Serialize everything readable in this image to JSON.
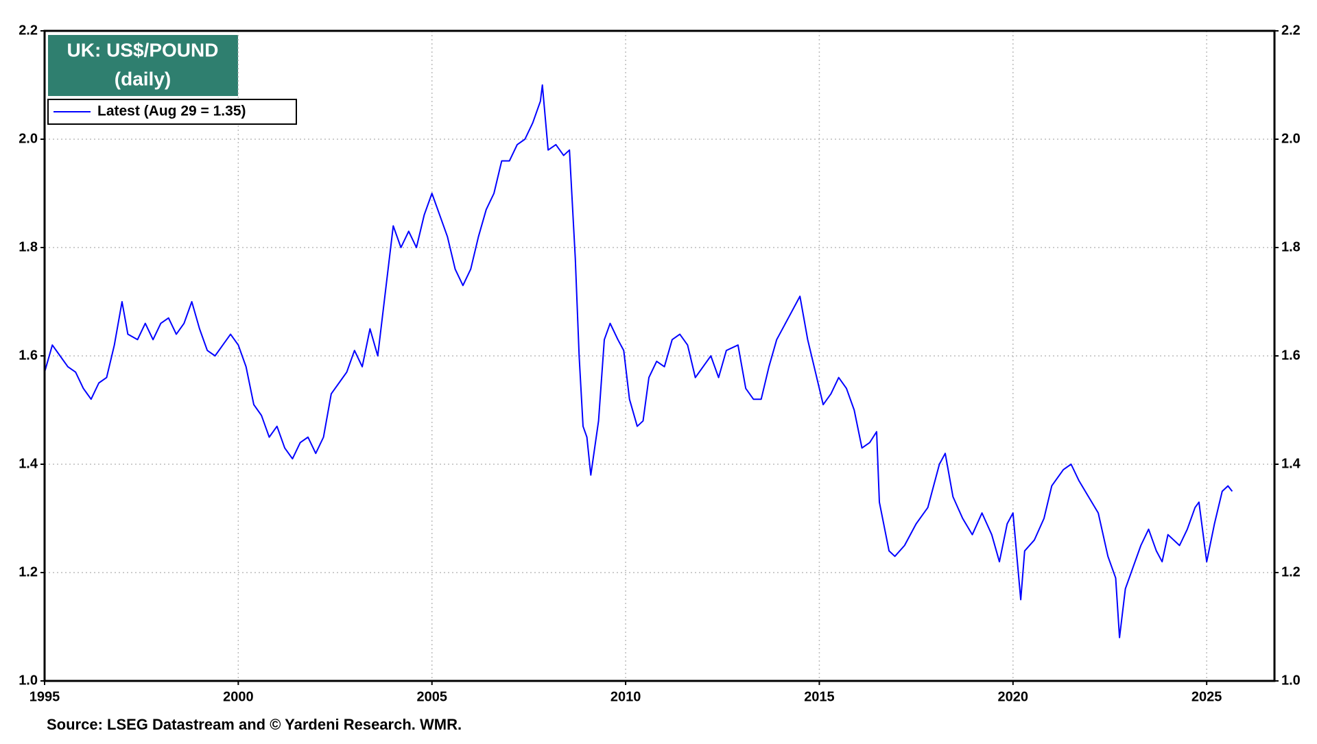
{
  "chart_data": {
    "type": "line",
    "title": "UK: US$/POUND",
    "subtitle": "(daily)",
    "source": "Source: LSEG Datastream and © Yardeni Research. WMR.",
    "xlim": [
      1995,
      2026.75
    ],
    "xticks": [
      1995,
      2000,
      2005,
      2010,
      2015,
      2020,
      2025
    ],
    "ylim": [
      1.0,
      2.2
    ],
    "yticks": [
      {
        "value": 1.0,
        "label": "1.0"
      },
      1.2,
      1.4,
      1.6,
      1.8,
      {
        "value": 2.0,
        "label": "2.0"
      },
      2.2
    ],
    "grid": true,
    "legend": "upper-left",
    "x": [
      1995.0,
      1995.2,
      1995.4,
      1995.6,
      1995.8,
      1996.0,
      1996.2,
      1996.4,
      1996.6,
      1996.8,
      1997.0,
      1997.15,
      1997.4,
      1997.6,
      1997.8,
      1998.0,
      1998.2,
      1998.4,
      1998.6,
      1998.8,
      1999.0,
      1999.2,
      1999.4,
      1999.6,
      1999.8,
      2000.0,
      2000.2,
      2000.4,
      2000.6,
      2000.8,
      2001.0,
      2001.2,
      2001.4,
      2001.6,
      2001.8,
      2002.0,
      2002.2,
      2002.4,
      2002.6,
      2002.8,
      2003.0,
      2003.2,
      2003.4,
      2003.6,
      2003.8,
      2004.0,
      2004.2,
      2004.4,
      2004.6,
      2004.8,
      2005.0,
      2005.2,
      2005.4,
      2005.6,
      2005.8,
      2006.0,
      2006.2,
      2006.4,
      2006.6,
      2006.8,
      2007.0,
      2007.2,
      2007.4,
      2007.6,
      2007.8,
      2007.85,
      2008.0,
      2008.2,
      2008.4,
      2008.55,
      2008.7,
      2008.8,
      2008.9,
      2009.0,
      2009.1,
      2009.3,
      2009.45,
      2009.6,
      2009.8,
      2009.95,
      2010.1,
      2010.3,
      2010.45,
      2010.6,
      2010.8,
      2011.0,
      2011.2,
      2011.4,
      2011.6,
      2011.8,
      2012.0,
      2012.2,
      2012.4,
      2012.6,
      2012.9,
      2013.1,
      2013.3,
      2013.5,
      2013.7,
      2013.9,
      2014.2,
      2014.5,
      2014.7,
      2014.9,
      2015.1,
      2015.3,
      2015.5,
      2015.7,
      2015.9,
      2016.1,
      2016.3,
      2016.48,
      2016.55,
      2016.8,
      2016.95,
      2017.2,
      2017.5,
      2017.8,
      2018.1,
      2018.25,
      2018.45,
      2018.7,
      2018.95,
      2019.2,
      2019.45,
      2019.65,
      2019.85,
      2020.0,
      2020.2,
      2020.3,
      2020.55,
      2020.8,
      2021.0,
      2021.3,
      2021.5,
      2021.7,
      2021.95,
      2022.2,
      2022.45,
      2022.65,
      2022.75,
      2022.9,
      2023.1,
      2023.3,
      2023.5,
      2023.7,
      2023.85,
      2024.0,
      2024.3,
      2024.5,
      2024.7,
      2024.8,
      2025.0,
      2025.2,
      2025.4,
      2025.55,
      2025.66
    ],
    "series": [
      {
        "name": "Latest (Aug 29 = 1.35)",
        "color": "#0000ff",
        "values": [
          1.57,
          1.62,
          1.6,
          1.58,
          1.57,
          1.54,
          1.52,
          1.55,
          1.56,
          1.62,
          1.7,
          1.64,
          1.63,
          1.66,
          1.63,
          1.66,
          1.67,
          1.64,
          1.66,
          1.7,
          1.65,
          1.61,
          1.6,
          1.62,
          1.64,
          1.62,
          1.58,
          1.51,
          1.49,
          1.45,
          1.47,
          1.43,
          1.41,
          1.44,
          1.45,
          1.42,
          1.45,
          1.53,
          1.55,
          1.57,
          1.61,
          1.58,
          1.65,
          1.6,
          1.72,
          1.84,
          1.8,
          1.83,
          1.8,
          1.86,
          1.9,
          1.86,
          1.82,
          1.76,
          1.73,
          1.76,
          1.82,
          1.87,
          1.9,
          1.96,
          1.96,
          1.99,
          2.0,
          2.03,
          2.07,
          2.1,
          1.98,
          1.99,
          1.97,
          1.98,
          1.78,
          1.6,
          1.47,
          1.45,
          1.38,
          1.48,
          1.63,
          1.66,
          1.63,
          1.61,
          1.52,
          1.47,
          1.48,
          1.56,
          1.59,
          1.58,
          1.63,
          1.64,
          1.62,
          1.56,
          1.58,
          1.6,
          1.56,
          1.61,
          1.62,
          1.54,
          1.52,
          1.52,
          1.58,
          1.63,
          1.67,
          1.71,
          1.63,
          1.57,
          1.51,
          1.53,
          1.56,
          1.54,
          1.5,
          1.43,
          1.44,
          1.46,
          1.33,
          1.24,
          1.23,
          1.25,
          1.29,
          1.32,
          1.4,
          1.42,
          1.34,
          1.3,
          1.27,
          1.31,
          1.27,
          1.22,
          1.29,
          1.31,
          1.15,
          1.24,
          1.26,
          1.3,
          1.36,
          1.39,
          1.4,
          1.37,
          1.34,
          1.31,
          1.23,
          1.19,
          1.08,
          1.17,
          1.21,
          1.25,
          1.28,
          1.24,
          1.22,
          1.27,
          1.25,
          1.28,
          1.32,
          1.33,
          1.22,
          1.29,
          1.35,
          1.36,
          1.35
        ]
      }
    ]
  }
}
